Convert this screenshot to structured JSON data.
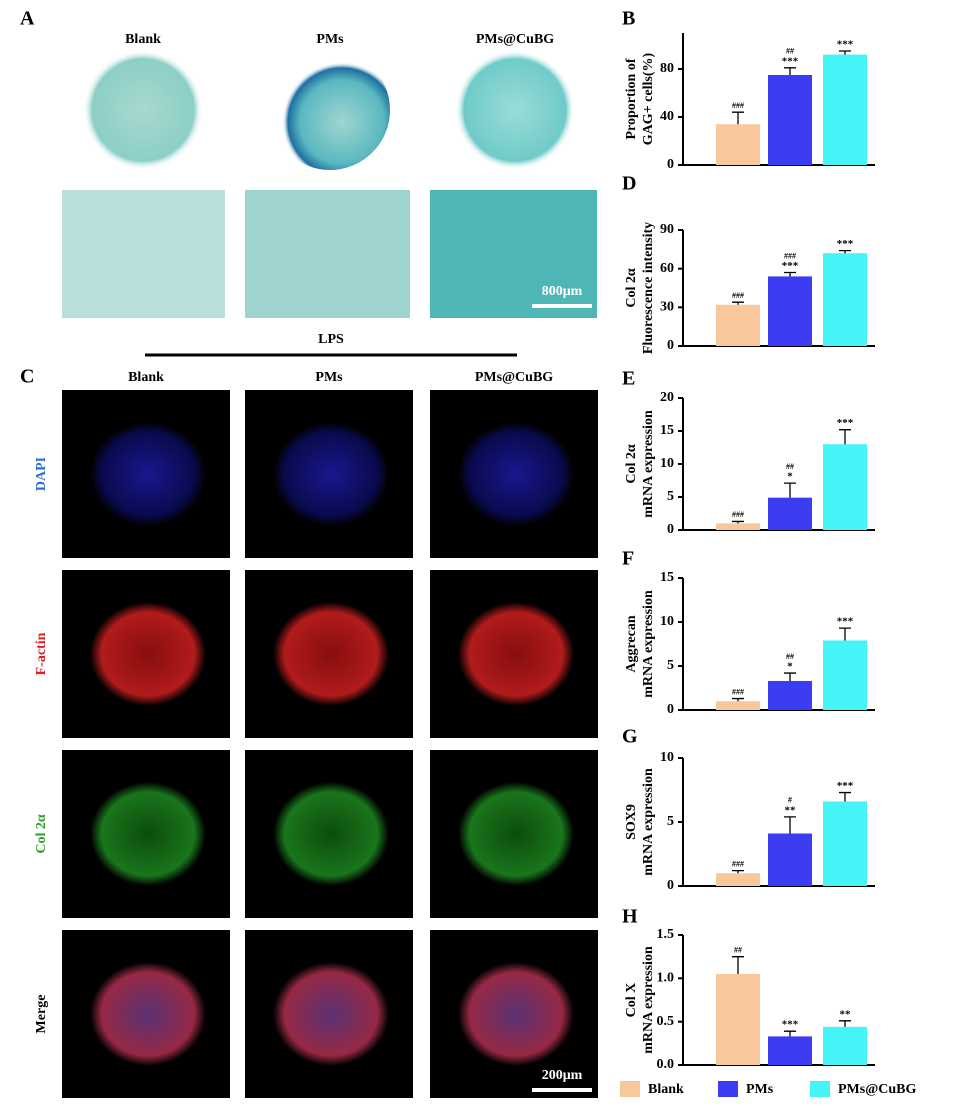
{
  "panels": {
    "a": {
      "label": "A",
      "columns": [
        "Blank",
        "PMs",
        "PMs@CuBG"
      ],
      "scale_bar": "800μm",
      "condition": "LPS"
    },
    "c": {
      "label": "C",
      "columns": [
        "Blank",
        "PMs",
        "PMs@CuBG"
      ],
      "rows": [
        "DAPI",
        "F-actin",
        "Col 2α",
        "Merge"
      ],
      "scale_bar": "200μm"
    }
  },
  "chart_data": [
    {
      "type": "bar",
      "label": "B",
      "ylabel": [
        "Proportion of",
        "GAG+ cells(%)"
      ],
      "values": [
        34,
        75,
        92
      ],
      "errors": [
        10,
        6,
        3
      ],
      "annotations": [
        [
          "###"
        ],
        [
          "##",
          "***"
        ],
        [
          "***"
        ]
      ],
      "ylim": [
        0,
        110
      ],
      "yticks": [
        0,
        40,
        80
      ]
    },
    {
      "type": "bar",
      "label": "D",
      "ylabel": [
        "Col 2α",
        "Fluorescence intensity"
      ],
      "values": [
        32,
        54,
        72
      ],
      "errors": [
        2,
        3,
        2
      ],
      "annotations": [
        [
          "###"
        ],
        [
          "###",
          "***"
        ],
        [
          "***"
        ]
      ],
      "ylim": [
        0,
        90
      ],
      "yticks": [
        0,
        30,
        60,
        90
      ]
    },
    {
      "type": "bar",
      "label": "E",
      "ylabel": [
        "Col 2α",
        "mRNA expression"
      ],
      "values": [
        1.0,
        4.9,
        13
      ],
      "errors": [
        0.3,
        2.2,
        2.2
      ],
      "annotations": [
        [
          "###"
        ],
        [
          "##",
          "*"
        ],
        [
          "***"
        ]
      ],
      "ylim": [
        0,
        20
      ],
      "yticks": [
        0,
        5,
        10,
        15,
        20
      ]
    },
    {
      "type": "bar",
      "label": "F",
      "ylabel": [
        "Aggrecan",
        "mRNA expression"
      ],
      "values": [
        1.0,
        3.3,
        7.9
      ],
      "errors": [
        0.3,
        0.9,
        1.4
      ],
      "annotations": [
        [
          "###"
        ],
        [
          "##",
          "*"
        ],
        [
          "***"
        ]
      ],
      "ylim": [
        0,
        15
      ],
      "yticks": [
        0,
        5,
        10,
        15
      ]
    },
    {
      "type": "bar",
      "label": "G",
      "ylabel": [
        "SOX9",
        "mRNA  expression"
      ],
      "values": [
        1.0,
        4.1,
        6.6
      ],
      "errors": [
        0.2,
        1.3,
        0.7
      ],
      "annotations": [
        [
          "###"
        ],
        [
          "#",
          "**"
        ],
        [
          "***"
        ]
      ],
      "ylim": [
        0,
        10
      ],
      "yticks": [
        0,
        5,
        10
      ]
    },
    {
      "type": "bar",
      "label": "H",
      "ylabel": [
        "Col X",
        "mRNA expression"
      ],
      "values": [
        1.05,
        0.33,
        0.44
      ],
      "errors": [
        0.2,
        0.06,
        0.07
      ],
      "annotations": [
        [
          "##"
        ],
        [
          "***"
        ],
        [
          "**"
        ]
      ],
      "ylim": [
        0,
        1.5
      ],
      "yticks": [
        {
          "value": 0,
          "label": "0.0"
        },
        {
          "value": 0.5,
          "label": "0.5"
        },
        {
          "value": 1.0,
          "label": "1.0"
        },
        {
          "value": 1.5,
          "label": "1.5"
        }
      ]
    }
  ],
  "legend": {
    "categories": [
      "Blank",
      "PMs",
      "PMs@CuBG"
    ],
    "colors": [
      "#f8c89c",
      "#3c3cf2",
      "#44f4f6"
    ]
  }
}
